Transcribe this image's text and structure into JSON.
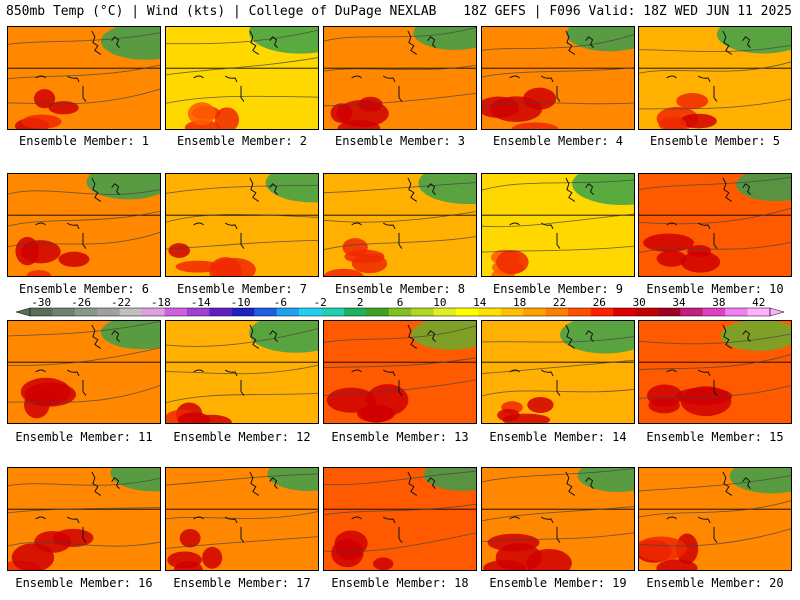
{
  "header": {
    "left": "850mb Temp (°C) | Wind (kts) | College of DuPage NEXLAB",
    "right": "18Z GEFS | F096 Valid: 18Z WED JUN 11 2025"
  },
  "panels": [
    {
      "label": "Ensemble Member: 1",
      "warmth": 0.62
    },
    {
      "label": "Ensemble Member: 2",
      "warmth": 0.45
    },
    {
      "label": "Ensemble Member: 3",
      "warmth": 0.7
    },
    {
      "label": "Ensemble Member: 4",
      "warmth": 0.66
    },
    {
      "label": "Ensemble Member: 5",
      "warmth": 0.58
    },
    {
      "label": "Ensemble Member: 6",
      "warmth": 0.68
    },
    {
      "label": "Ensemble Member: 7",
      "warmth": 0.55
    },
    {
      "label": "Ensemble Member: 8",
      "warmth": 0.5
    },
    {
      "label": "Ensemble Member: 9",
      "warmth": 0.48
    },
    {
      "label": "Ensemble Member: 10",
      "warmth": 0.74
    },
    {
      "label": "Ensemble Member: 11",
      "warmth": 0.72
    },
    {
      "label": "Ensemble Member: 12",
      "warmth": 0.56
    },
    {
      "label": "Ensemble Member: 13",
      "warmth": 0.76
    },
    {
      "label": "Ensemble Member: 14",
      "warmth": 0.6
    },
    {
      "label": "Ensemble Member: 15",
      "warmth": 0.78
    },
    {
      "label": "Ensemble Member: 16",
      "warmth": 0.64
    },
    {
      "label": "Ensemble Member: 17",
      "warmth": 0.7
    },
    {
      "label": "Ensemble Member: 18",
      "warmth": 0.74
    },
    {
      "label": "Ensemble Member: 19",
      "warmth": 0.72
    },
    {
      "label": "Ensemble Member: 20",
      "warmth": 0.68
    }
  ],
  "colorbar": {
    "ticks": [
      "-30",
      "-26",
      "-22",
      "-18",
      "-14",
      "-10",
      "-6",
      "-2",
      "2",
      "6",
      "10",
      "14",
      "18",
      "22",
      "26",
      "30",
      "34",
      "38",
      "42"
    ],
    "colors": [
      "#5a6e5a",
      "#708070",
      "#889888",
      "#a0a0a0",
      "#c0c0c0",
      "#e0a0e0",
      "#d060e0",
      "#a040d0",
      "#6020c0",
      "#2020c0",
      "#2060e0",
      "#20a0f0",
      "#20d0f0",
      "#20d0b0",
      "#20b060",
      "#40a020",
      "#80c020",
      "#b0d820",
      "#e0f020",
      "#ffff00",
      "#ffe000",
      "#ffc000",
      "#ffa000",
      "#ff8000",
      "#ff5000",
      "#ff2000",
      "#e00000",
      "#c00000",
      "#a00020",
      "#c02080",
      "#e040c0",
      "#f080f0",
      "#ffb0ff"
    ]
  }
}
